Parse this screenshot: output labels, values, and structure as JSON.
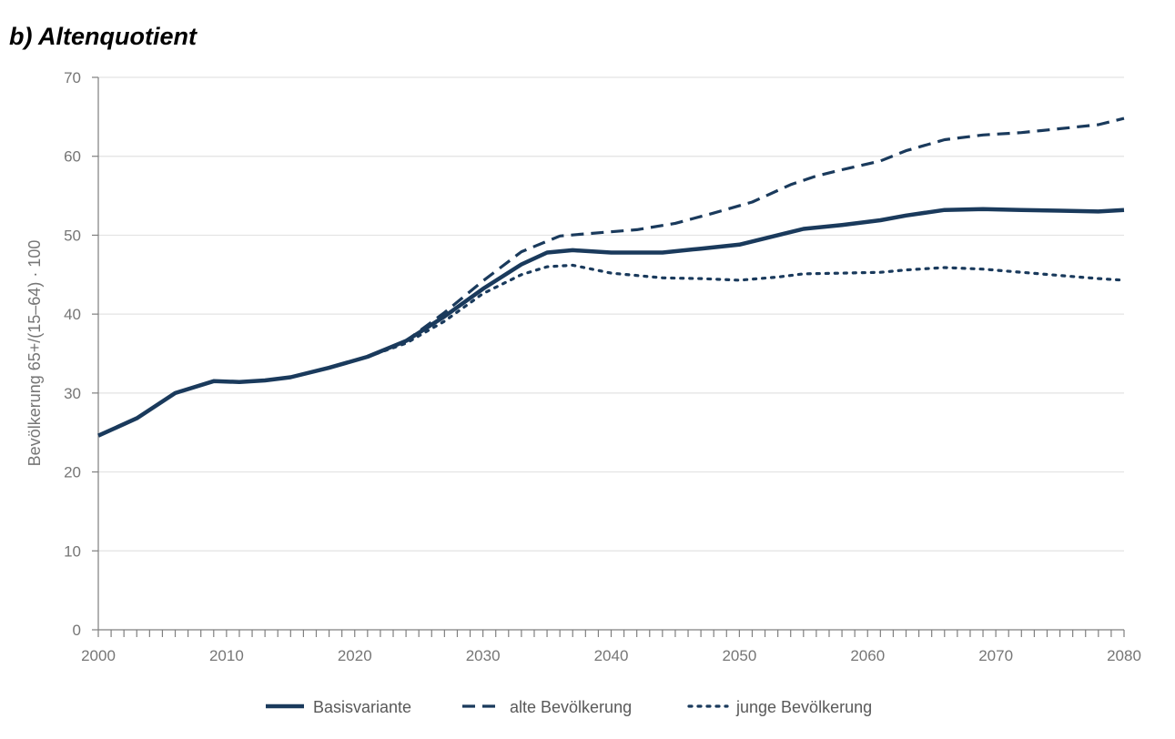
{
  "chart_data": {
    "type": "line",
    "title": "b) Altenquotient",
    "xlabel": "",
    "ylabel": "Bevölkerung 65+/(15–64) · 100",
    "xlim": [
      2000,
      2080
    ],
    "ylim": [
      0,
      70
    ],
    "x_ticks": [
      "2000",
      "2010",
      "2020",
      "2030",
      "2040",
      "2050",
      "2060",
      "2070",
      "2080"
    ],
    "y_ticks": [
      "0",
      "10",
      "20",
      "30",
      "40",
      "50",
      "60",
      "70"
    ],
    "grid": "horizontal",
    "legend_position": "bottom",
    "color": "#1a3a5c",
    "series": [
      {
        "name": "Basisvariante",
        "style": "solid",
        "points": [
          [
            2000,
            24.6
          ],
          [
            2003,
            26.8
          ],
          [
            2006,
            30.0
          ],
          [
            2009,
            31.5
          ],
          [
            2011,
            31.4
          ],
          [
            2013,
            31.6
          ],
          [
            2015,
            32.0
          ],
          [
            2018,
            33.2
          ],
          [
            2021,
            34.6
          ],
          [
            2024,
            36.6
          ],
          [
            2027,
            39.7
          ],
          [
            2030,
            43.2
          ],
          [
            2033,
            46.3
          ],
          [
            2035,
            47.8
          ],
          [
            2037,
            48.1
          ],
          [
            2040,
            47.8
          ],
          [
            2044,
            47.8
          ],
          [
            2047,
            48.3
          ],
          [
            2050,
            48.8
          ],
          [
            2053,
            50.0
          ],
          [
            2055,
            50.8
          ],
          [
            2058,
            51.3
          ],
          [
            2061,
            51.9
          ],
          [
            2063,
            52.5
          ],
          [
            2066,
            53.2
          ],
          [
            2069,
            53.3
          ],
          [
            2072,
            53.2
          ],
          [
            2075,
            53.1
          ],
          [
            2078,
            53.0
          ],
          [
            2080,
            53.2
          ]
        ]
      },
      {
        "name": "alte Bevölkerung",
        "style": "dashed",
        "points": [
          [
            2021,
            34.6
          ],
          [
            2024,
            36.6
          ],
          [
            2027,
            40.2
          ],
          [
            2030,
            44.2
          ],
          [
            2033,
            47.9
          ],
          [
            2036,
            49.9
          ],
          [
            2039,
            50.3
          ],
          [
            2042,
            50.7
          ],
          [
            2045,
            51.5
          ],
          [
            2048,
            52.8
          ],
          [
            2051,
            54.2
          ],
          [
            2054,
            56.4
          ],
          [
            2056,
            57.5
          ],
          [
            2058,
            58.3
          ],
          [
            2061,
            59.4
          ],
          [
            2063,
            60.7
          ],
          [
            2066,
            62.1
          ],
          [
            2069,
            62.7
          ],
          [
            2072,
            63.0
          ],
          [
            2075,
            63.5
          ],
          [
            2078,
            64.0
          ],
          [
            2080,
            64.8
          ]
        ]
      },
      {
        "name": "junge Bevölkerung",
        "style": "dotted",
        "points": [
          [
            2021,
            34.6
          ],
          [
            2024,
            36.3
          ],
          [
            2027,
            39.1
          ],
          [
            2030,
            42.6
          ],
          [
            2033,
            45.0
          ],
          [
            2035,
            46.0
          ],
          [
            2037,
            46.2
          ],
          [
            2040,
            45.2
          ],
          [
            2044,
            44.6
          ],
          [
            2047,
            44.5
          ],
          [
            2050,
            44.3
          ],
          [
            2053,
            44.7
          ],
          [
            2055,
            45.1
          ],
          [
            2058,
            45.2
          ],
          [
            2061,
            45.3
          ],
          [
            2063,
            45.6
          ],
          [
            2066,
            45.9
          ],
          [
            2069,
            45.7
          ],
          [
            2072,
            45.3
          ],
          [
            2075,
            44.9
          ],
          [
            2078,
            44.5
          ],
          [
            2080,
            44.3
          ]
        ]
      }
    ]
  }
}
